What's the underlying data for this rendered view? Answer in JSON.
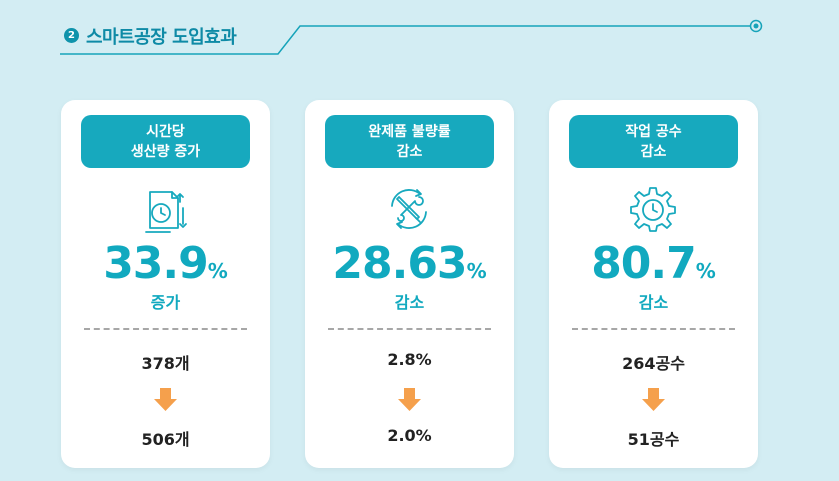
{
  "header": {
    "number": "2",
    "title": "스마트공장 도입효과"
  },
  "colors": {
    "background": "#d3edf3",
    "accent": "#17a9be",
    "accent_dark": "#0e8aa6",
    "arrow": "#f5a04c"
  },
  "cards": [
    {
      "label_line1": "시간당",
      "label_line2": "생산량 증가",
      "icon": "clock-document-icon",
      "value": "33.9",
      "unit": "%",
      "direction": "증가",
      "before": "378개",
      "after": "506개"
    },
    {
      "label_line1": "완제품 불량률",
      "label_line2": "감소",
      "icon": "tools-cycle-icon",
      "value": "28.63",
      "unit": "%",
      "direction": "감소",
      "before": "2.8%",
      "after": "2.0%"
    },
    {
      "label_line1": "작업 공수",
      "label_line2": "감소",
      "icon": "gear-clock-icon",
      "value": "80.7",
      "unit": "%",
      "direction": "감소",
      "before": "264공수",
      "after": "51공수"
    }
  ]
}
